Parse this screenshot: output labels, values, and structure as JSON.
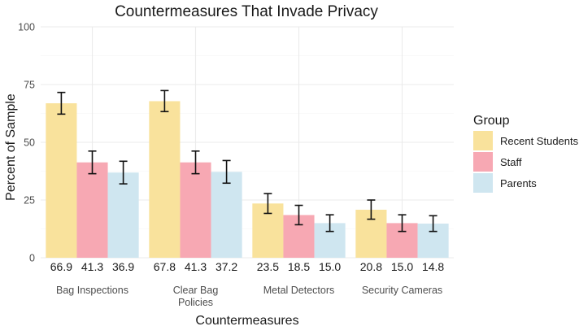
{
  "chart_data": {
    "type": "bar",
    "title": "Countermeasures That Invade Privacy",
    "xlabel": "Countermeasures",
    "ylabel": "Percent of Sample",
    "ylim": [
      0,
      100
    ],
    "yticks": [
      0,
      25,
      50,
      75,
      100
    ],
    "grid": true,
    "categories": [
      [
        "Bag Inspections"
      ],
      [
        "Clear Bag",
        "Policies"
      ],
      [
        "Metal Detectors"
      ],
      [
        "Security Cameras"
      ]
    ],
    "series": [
      {
        "name": "Recent Students",
        "color": "#f9e29c",
        "values": [
          66.9,
          67.8,
          23.5,
          20.8
        ],
        "labels": [
          "66.9",
          "67.8",
          "23.5",
          "20.8"
        ],
        "err_low": [
          62.2,
          63.3,
          19.2,
          16.7
        ],
        "err_high": [
          71.6,
          72.4,
          27.8,
          25.0
        ]
      },
      {
        "name": "Staff",
        "color": "#f7a8b3",
        "values": [
          41.3,
          41.3,
          18.5,
          15.0
        ],
        "labels": [
          "41.3",
          "41.3",
          "18.5",
          "15.0"
        ],
        "err_low": [
          36.4,
          36.4,
          14.3,
          11.4
        ],
        "err_high": [
          46.2,
          46.2,
          22.7,
          18.6
        ]
      },
      {
        "name": "Parents",
        "color": "#cfe6f0",
        "values": [
          36.9,
          37.2,
          15.0,
          14.8
        ],
        "labels": [
          "36.9",
          "37.2",
          "15.0",
          "14.8"
        ],
        "err_low": [
          32.0,
          32.3,
          11.4,
          11.4
        ],
        "err_high": [
          41.8,
          42.1,
          18.6,
          18.2
        ]
      }
    ],
    "legend": {
      "title": "Group",
      "position": "right"
    }
  }
}
